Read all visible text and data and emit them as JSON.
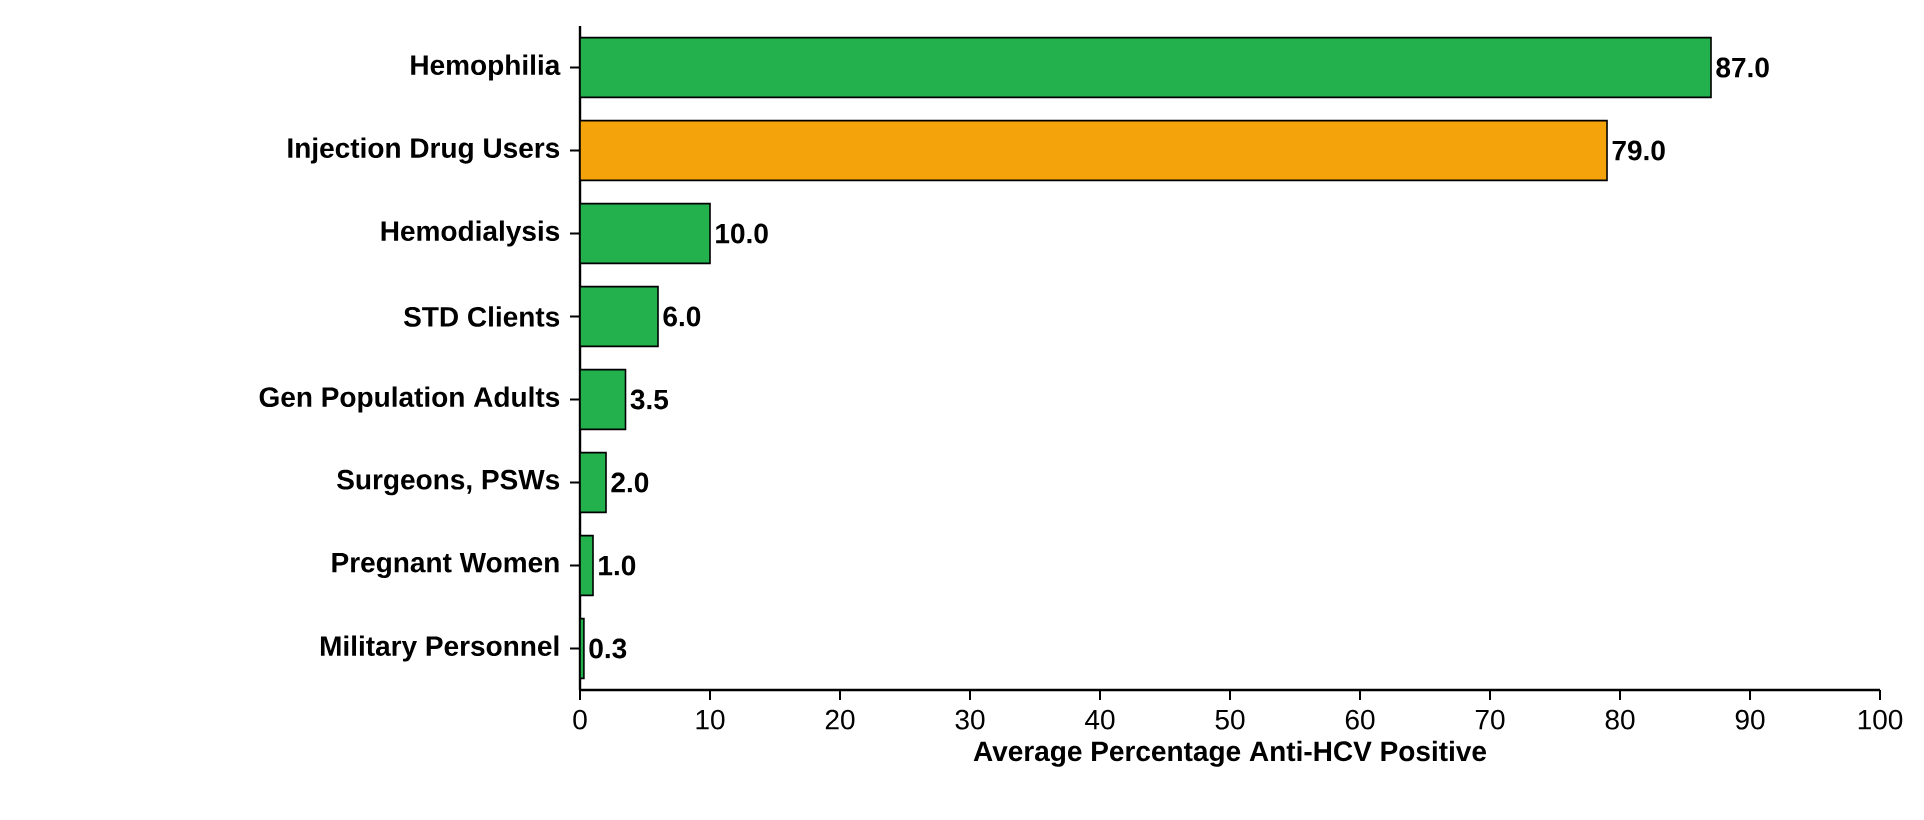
{
  "chart_data": {
    "type": "bar",
    "orientation": "horizontal",
    "xlabel": "Average Percentage Anti-HCV Positive",
    "categories": [
      "Hemophilia",
      "Injection Drug Users",
      "Hemodialysis",
      "STD Clients",
      "Gen Population Adults",
      "Surgeons, PSWs",
      "Pregnant Women",
      "Military Personnel"
    ],
    "values": [
      87,
      79,
      10,
      6,
      3.5,
      2,
      1,
      0.3
    ],
    "value_labels": [
      "87.0",
      "79.0",
      "10.0",
      "6.0",
      "3.5",
      "2.0",
      "1.0",
      "0.3"
    ],
    "colors": [
      "#22b14c",
      "#f5a30a",
      "#22b14c",
      "#22b14c",
      "#22b14c",
      "#22b14c",
      "#22b14c",
      "#22b14c"
    ],
    "xlim": [
      0,
      100
    ],
    "xticks": [
      0,
      10,
      20,
      30,
      40,
      50,
      60,
      70,
      80,
      90,
      100
    ]
  }
}
